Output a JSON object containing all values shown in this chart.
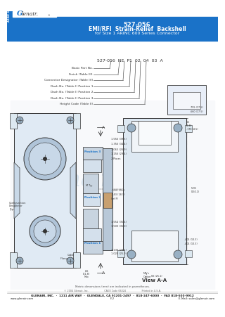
{
  "title_line1": "527-056",
  "title_line2": "EMI/RFI  Strain-Relief  Backshell",
  "title_line3": "for Size 1 ARINC 600 Series Connector",
  "header_bg": "#1a72c8",
  "header_text_color": "#ffffff",
  "logo_text": "Glenair.",
  "logo_bg": "#ffffff",
  "sidebar_bg": "#1a72c8",
  "sidebar_text": "ARINC 600",
  "part_number_label": "527-056  NE  P1  02  04  03  A",
  "callout_labels": [
    "Basic Part No.",
    "Finish (Table III)",
    "Connector Designator (Table IV)",
    "Dash No. (Table I) Position 1",
    "Dash No. (Table I) Position 2",
    "Dash No. (Table I) Position 3",
    "Height Code (Table II)"
  ],
  "view_label": "View A-A",
  "metric_note": "Metric dimensions (mm) are indicated in parentheses.",
  "footer_line1": "GLENAIR, INC.  ·  1211 AIR WAY  ·  GLENDALE, CA 91201-2497  ·  818-247-6000  ·  FAX 818-500-9912",
  "footer_line2_left": "www.glenair.com",
  "footer_line2_mid": "F-2",
  "footer_line2_right": "E-Mail: sales@glenair.com",
  "footer_sub": "© 2004 Glenair, Inc.                    CAGE Code 06324                    Printed in U.S.A.",
  "body_bg": "#ffffff",
  "blue": "#1a72c8",
  "dark": "#333333",
  "light_blue": "#b8cee0",
  "mid_blue": "#8fafc8",
  "pale": "#dce8f0",
  "watermark": "#c0d4e4"
}
